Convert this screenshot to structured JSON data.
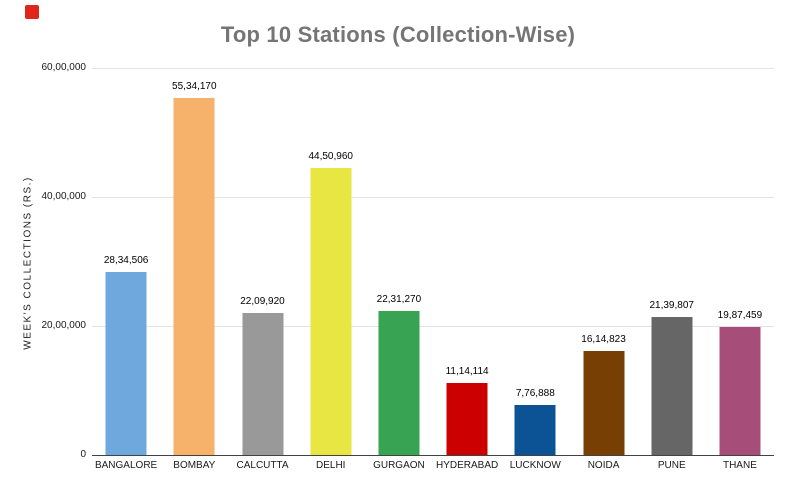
{
  "marker": {
    "color": "#e0251c"
  },
  "title": "Top 10 Stations (Collection-Wise)",
  "colors": {
    "title_text": "#757575",
    "gridline": "#e3e3e3",
    "axis_line": "#424242",
    "axis_text": "#1a1a1a",
    "value_text": "#000000",
    "background": "#ffffff"
  },
  "chart_data": {
    "type": "bar",
    "title": "Top 10 Stations (Collection-Wise)",
    "xlabel": "",
    "ylabel": "WEEK'S COLLECTIONS (RS.)",
    "categories": [
      "BANGALORE",
      "BOMBAY",
      "CALCUTTA",
      "DELHI",
      "GURGAON",
      "HYDERABAD",
      "LUCKNOW",
      "NOIDA",
      "PUNE",
      "THANE"
    ],
    "values": [
      2834506,
      5534170,
      2209920,
      4450960,
      2231270,
      1114114,
      776888,
      1614823,
      2139807,
      1987459
    ],
    "value_labels": [
      "28,34,506",
      "55,34,170",
      "22,09,920",
      "44,50,960",
      "22,31,270",
      "11,14,114",
      "7,76,888",
      "16,14,823",
      "21,39,807",
      "19,87,459"
    ],
    "bar_colors": [
      "#6fa8dc",
      "#f6b26b",
      "#999999",
      "#e7e643",
      "#38a352",
      "#cc0000",
      "#0b5394",
      "#783f04",
      "#666666",
      "#a64d79"
    ],
    "ylim": [
      0,
      6000000
    ],
    "yticks": [
      {
        "value": 0,
        "label": "0"
      },
      {
        "value": 2000000,
        "label": "20,00,000"
      },
      {
        "value": 4000000,
        "label": "40,00,000"
      },
      {
        "value": 6000000,
        "label": "60,00,000"
      }
    ],
    "grid": true,
    "legend": "none"
  }
}
